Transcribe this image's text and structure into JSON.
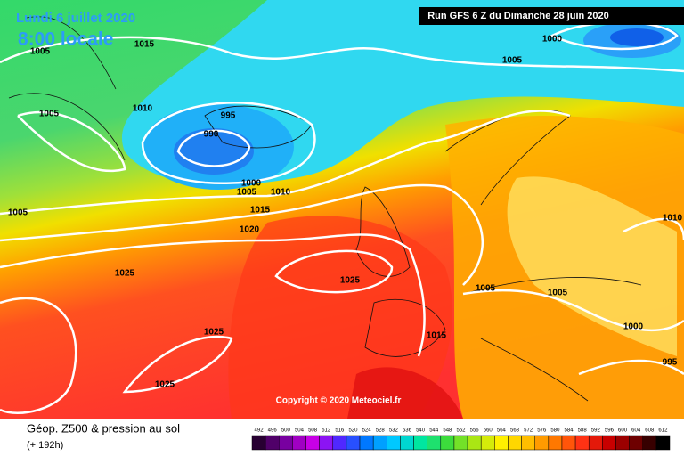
{
  "header": {
    "date": "Lundi 6 juillet 2020",
    "time": "8:00 locale",
    "run": "Run GFS 6 Z du Dimanche 28 juin 2020"
  },
  "map": {
    "isobar_labels": [
      "1015",
      "1005",
      "1000",
      "1005",
      "1005",
      "1010",
      "995",
      "990",
      "1000",
      "1005",
      "1010",
      "1015",
      "1005",
      "1020",
      "1010",
      "1025",
      "1025",
      "1005",
      "1005",
      "1000",
      "1015",
      "1025",
      "995",
      "1025"
    ],
    "copyright": "Copyright © 2020 Meteociel.fr"
  },
  "legend": {
    "title": "Géop. Z500 & pression au sol",
    "subtitle": "(+ 192h)",
    "scale": [
      492,
      496,
      500,
      504,
      508,
      512,
      516,
      520,
      524,
      528,
      532,
      536,
      540,
      544,
      548,
      552,
      556,
      560,
      564,
      568,
      572,
      576,
      580,
      584,
      588,
      592,
      596,
      600,
      604,
      608,
      612
    ]
  }
}
